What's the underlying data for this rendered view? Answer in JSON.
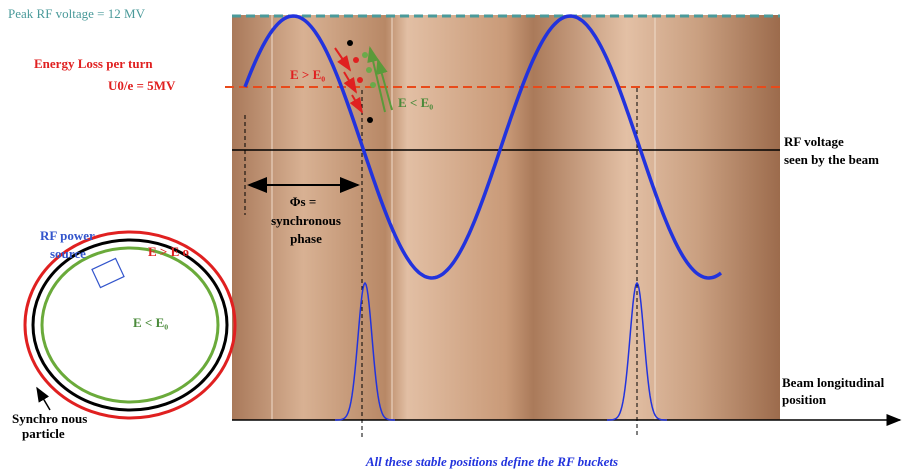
{
  "labels": {
    "peak_rf": "Peak RF voltage = 12 MV",
    "energy_loss": "Energy Loss per turn",
    "u0": "U0/e =  5MV",
    "e_greater_top": "E > E₀",
    "e_less_top": "E < E₀",
    "rf_voltage": "RF voltage",
    "seen_by_beam": "seen by the beam",
    "phi_s": "Φs =",
    "synchronous": "synchronous",
    "phase": "phase",
    "rf_power": "RF power",
    "source": "source",
    "e_greater_ring": "E > E o",
    "e_less_ring": "E < E₀",
    "synchronous_particle_1": "Synchro nous",
    "synchronous_particle_2": "particle",
    "beam_long_1": "Beam longitudinal",
    "beam_long_2": "position",
    "caption": "All these stable positions define the RF buckets"
  }
}
